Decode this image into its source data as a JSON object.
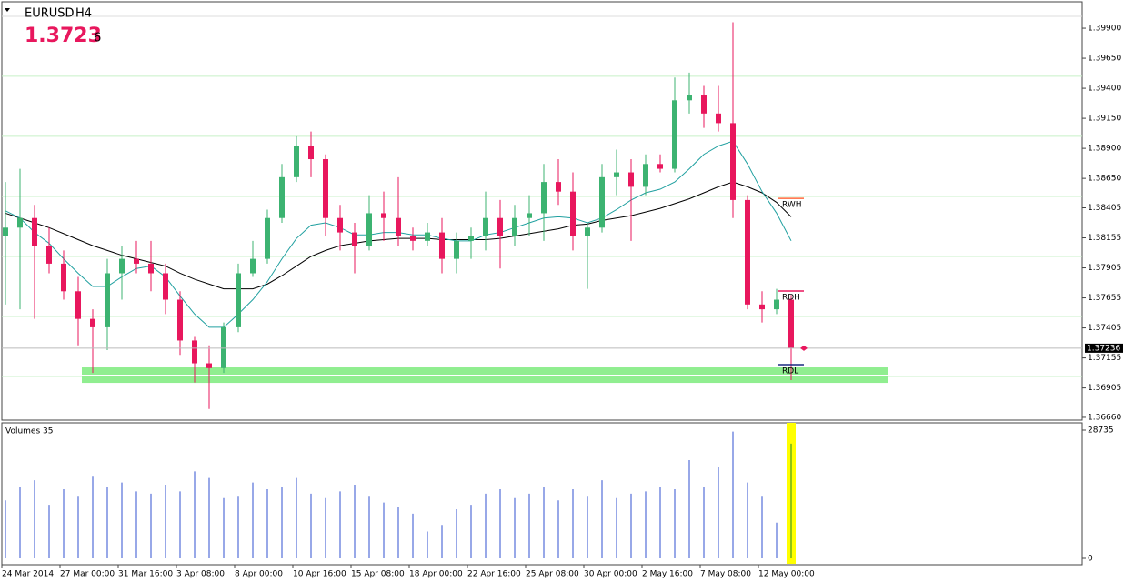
{
  "header": {
    "symbol": "EURUSD",
    "timeframe": "H4",
    "price": "1.3723",
    "price_small": "6"
  },
  "chart_data": {
    "type": "candlestick",
    "categories": [
      "24 Mar 2014",
      null,
      null,
      null,
      "27 Mar 00:00",
      null,
      null,
      null,
      "31 Mar 16:00",
      null,
      null,
      null,
      "3 Apr 08:00",
      null,
      null,
      null,
      "8 Apr 00:00",
      null,
      null,
      null,
      "10 Apr 16:00",
      null,
      null,
      null,
      "15 Apr 08:00",
      null,
      null,
      null,
      "18 Apr 00:00",
      null,
      null,
      null,
      "22 Apr 16:00",
      null,
      null,
      null,
      "25 Apr 08:00",
      null,
      null,
      null,
      "30 Apr 00:00",
      null,
      null,
      null,
      "2 May 16:00",
      null,
      null,
      null,
      "7 May 08:00",
      null,
      null,
      null,
      "12 May 00:00",
      null,
      null
    ],
    "open": [
      1.3817,
      1.3824,
      1.3832,
      1.3809,
      1.3794,
      1.3771,
      1.3748,
      1.3741,
      1.3786,
      1.3798,
      1.3794,
      1.3786,
      1.3764,
      1.373,
      1.3711,
      1.3707,
      1.3741,
      1.3786,
      1.3798,
      1.3832,
      1.3866,
      1.3892,
      1.3881,
      1.3832,
      1.382,
      1.3809,
      1.3836,
      1.3832,
      1.3817,
      1.3813,
      1.382,
      1.3798,
      1.3813,
      1.3817,
      1.3832,
      1.3817,
      1.3832,
      1.3836,
      1.3862,
      1.3854,
      1.3817,
      1.3824,
      1.3866,
      1.387,
      1.3858,
      1.3877,
      1.3873,
      1.393,
      1.3934,
      1.3919,
      1.3911,
      1.3847,
      1.376,
      1.3756,
      1.3764
    ],
    "high": [
      1.3862,
      1.3873,
      1.3843,
      1.3824,
      1.3805,
      1.3783,
      1.3756,
      1.3798,
      1.3809,
      1.3813,
      1.3813,
      1.3794,
      1.3771,
      1.3733,
      1.3726,
      1.3745,
      1.3794,
      1.3813,
      1.3839,
      1.3877,
      1.39,
      1.3904,
      1.3885,
      1.3843,
      1.3828,
      1.3851,
      1.3854,
      1.3866,
      1.3824,
      1.3828,
      1.3832,
      1.382,
      1.3824,
      1.3854,
      1.3847,
      1.3843,
      1.3851,
      1.3877,
      1.3881,
      1.387,
      1.3828,
      1.3877,
      1.3889,
      1.3881,
      1.3885,
      1.3885,
      1.3949,
      1.3953,
      1.3942,
      1.3942,
      1.3995,
      1.3851,
      1.3771,
      1.3773,
      1.3768
    ],
    "low": [
      1.376,
      1.3756,
      1.3748,
      1.3786,
      1.3764,
      1.3726,
      1.3703,
      1.3722,
      1.3764,
      1.3786,
      1.3771,
      1.3752,
      1.3718,
      1.3695,
      1.3673,
      1.3703,
      1.3737,
      1.3783,
      1.3794,
      1.3828,
      1.3862,
      1.3866,
      1.3817,
      1.3805,
      1.3786,
      1.3805,
      1.3813,
      1.3809,
      1.3805,
      1.3809,
      1.3786,
      1.3786,
      1.3798,
      1.3805,
      1.379,
      1.3809,
      1.3817,
      1.3813,
      1.3843,
      1.3805,
      1.3773,
      1.382,
      1.3851,
      1.3813,
      1.3851,
      1.387,
      1.387,
      1.3919,
      1.3907,
      1.3904,
      1.3832,
      1.3756,
      1.3745,
      1.3752,
      1.3697
    ],
    "close": [
      1.3824,
      1.3832,
      1.3809,
      1.3794,
      1.3771,
      1.3748,
      1.3741,
      1.3786,
      1.3798,
      1.3794,
      1.3786,
      1.3764,
      1.373,
      1.3711,
      1.3707,
      1.3741,
      1.3786,
      1.3798,
      1.3832,
      1.3866,
      1.3892,
      1.3881,
      1.3832,
      1.382,
      1.3809,
      1.3836,
      1.3832,
      1.3817,
      1.3813,
      1.382,
      1.3798,
      1.3813,
      1.3817,
      1.3832,
      1.3817,
      1.3832,
      1.3836,
      1.3862,
      1.3854,
      1.3817,
      1.3824,
      1.3866,
      1.387,
      1.3858,
      1.3877,
      1.3873,
      1.393,
      1.3934,
      1.3919,
      1.3911,
      1.3847,
      1.376,
      1.3756,
      1.3764,
      1.37236
    ],
    "up_color": "#3cb371",
    "down_color": "#e8175d",
    "averages": [
      {
        "color": "#000000",
        "values": [
          1.3836,
          1.3832,
          1.3828,
          1.3824,
          1.3819,
          1.3814,
          1.3809,
          1.3805,
          1.3801,
          1.3798,
          1.3795,
          1.3792,
          1.3786,
          1.3781,
          1.3777,
          1.3773,
          1.3773,
          1.3773,
          1.3777,
          1.3784,
          1.3792,
          1.38,
          1.3805,
          1.3809,
          1.3811,
          1.3813,
          1.3814,
          1.3815,
          1.3815,
          1.3815,
          1.3814,
          1.3814,
          1.3814,
          1.3814,
          1.3815,
          1.3817,
          1.3819,
          1.3821,
          1.3823,
          1.3826,
          1.3827,
          1.383,
          1.3832,
          1.3834,
          1.3837,
          1.384,
          1.3844,
          1.3848,
          1.3853,
          1.3858,
          1.3862,
          1.3858,
          1.3853,
          1.3845,
          1.3833
        ]
      },
      {
        "color": "#20a0a0",
        "values": [
          1.3838,
          1.3832,
          1.382,
          1.3811,
          1.3798,
          1.3786,
          1.3775,
          1.3775,
          1.3783,
          1.379,
          1.3792,
          1.3783,
          1.3767,
          1.3752,
          1.3741,
          1.3741,
          1.3752,
          1.3764,
          1.3779,
          1.3798,
          1.3815,
          1.3826,
          1.3828,
          1.3824,
          1.3818,
          1.3818,
          1.382,
          1.382,
          1.3818,
          1.3818,
          1.3815,
          1.3813,
          1.3813,
          1.3818,
          1.382,
          1.3824,
          1.3828,
          1.3832,
          1.3833,
          1.3832,
          1.3828,
          1.3832,
          1.3839,
          1.3847,
          1.3853,
          1.3856,
          1.3862,
          1.3873,
          1.3885,
          1.3892,
          1.3896,
          1.3877,
          1.3854,
          1.3836,
          1.3813
        ]
      }
    ],
    "round_levels": [
      1.395,
      1.39,
      1.385,
      1.38,
      1.375,
      1.37
    ],
    "support_zone": [
      1.36947,
      1.37076
    ],
    "levels": [
      {
        "label": "RWH",
        "value": 1.38484,
        "color": "#ff6a3d"
      },
      {
        "label": "RDH",
        "value": 1.37712,
        "color": "#e8175d"
      },
      {
        "label": "RDL",
        "value": 1.37099,
        "color": "#1a2a80"
      }
    ],
    "ylim": [
      1.36637,
      1.4012
    ],
    "yticks": [
      {
        "value": 1.399,
        "label": "1.39900"
      },
      {
        "value": 1.3965,
        "label": "1.39650"
      },
      {
        "value": 1.394,
        "label": "1.39400"
      },
      {
        "value": 1.3915,
        "label": "1.39150"
      },
      {
        "value": 1.389,
        "label": "1.38900"
      },
      {
        "value": 1.3865,
        "label": "1.38650"
      },
      {
        "value": 1.38405,
        "label": "1.38405"
      },
      {
        "value": 1.38155,
        "label": "1.38155"
      },
      {
        "value": 1.37905,
        "label": "1.37905"
      },
      {
        "value": 1.37655,
        "label": "1.37655"
      },
      {
        "value": 1.37405,
        "label": "1.37405"
      },
      {
        "value": 1.37155,
        "label": "1.37155"
      },
      {
        "value": 1.36905,
        "label": "1.36905"
      },
      {
        "value": 1.3666,
        "label": "1.36660"
      }
    ],
    "volume": {
      "label": "Volumes 35",
      "color": "#3050d0",
      "highlight": "#ffff00",
      "values": [
        13000,
        16000,
        17500,
        12000,
        15500,
        14000,
        18500,
        16000,
        17000,
        15000,
        14500,
        16500,
        15000,
        19500,
        18000,
        13500,
        14000,
        17000,
        15500,
        16000,
        18000,
        14500,
        13500,
        15000,
        16500,
        14000,
        12500,
        11500,
        10000,
        6000,
        7500,
        11000,
        12000,
        14500,
        15500,
        13500,
        14500,
        16000,
        13000,
        15500,
        14000,
        17500,
        13500,
        14500,
        15000,
        16000,
        15500,
        22000,
        16000,
        20500,
        28400,
        17000,
        14000,
        8000,
        25700
      ],
      "ylim": [
        0,
        28735
      ],
      "yticks": [
        0,
        28735
      ]
    }
  }
}
